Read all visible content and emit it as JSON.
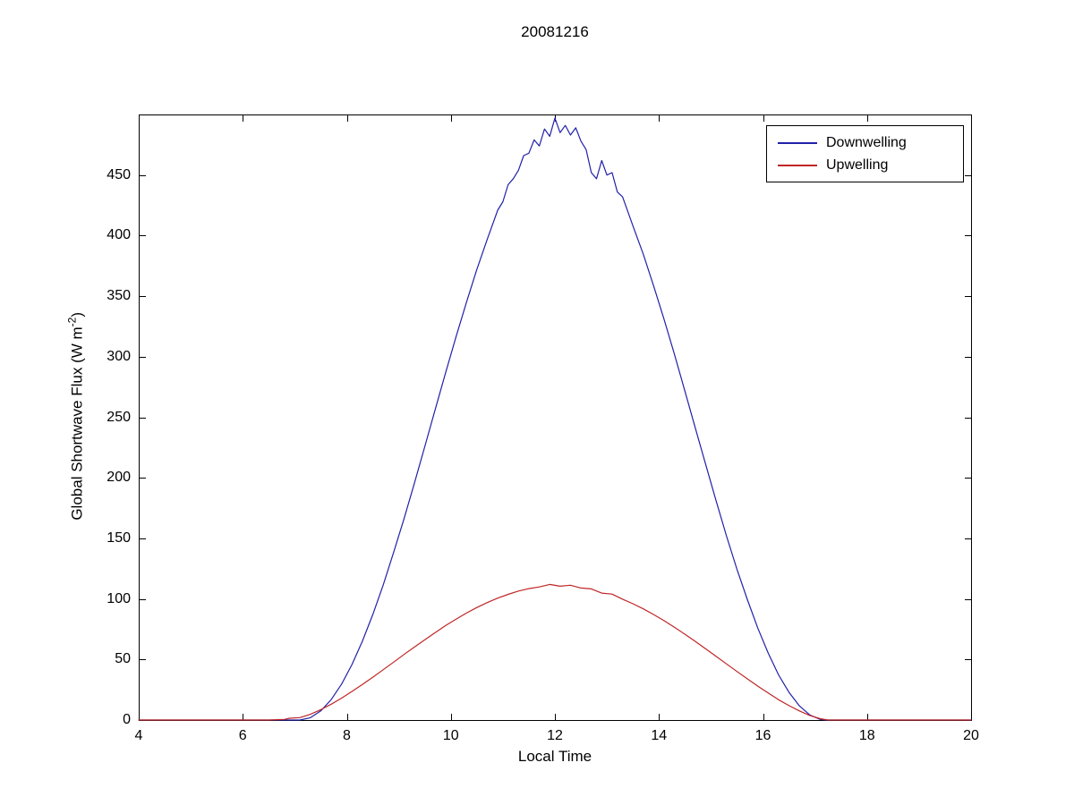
{
  "figure": {
    "title": "20081216"
  },
  "chart_data": {
    "type": "line",
    "title": "20081216",
    "xlabel": "Local Time",
    "ylabel": "Global Shortwave Flux (W m^-2)",
    "ylabel_parts": {
      "prefix": "Global Shortwave Flux (W m",
      "sup": "-2",
      "suffix": ")"
    },
    "xlim": [
      4,
      20
    ],
    "ylim": [
      0,
      500
    ],
    "xticks": [
      4,
      6,
      8,
      10,
      12,
      14,
      16,
      18,
      20
    ],
    "yticks": [
      0,
      50,
      100,
      150,
      200,
      250,
      300,
      350,
      400,
      450
    ],
    "grid": false,
    "background": "#ffffff",
    "axis_color": "#000000",
    "legend_position": "top-right",
    "series": [
      {
        "name": "Downwelling",
        "color": "#2121aa",
        "x": [
          4.0,
          6.5,
          7.0,
          7.1,
          7.3,
          7.5,
          7.7,
          7.9,
          8.1,
          8.3,
          8.5,
          8.7,
          8.9,
          9.1,
          9.3,
          9.5,
          9.7,
          9.9,
          10.1,
          10.3,
          10.5,
          10.7,
          10.9,
          11.0,
          11.1,
          11.2,
          11.3,
          11.4,
          11.5,
          11.6,
          11.7,
          11.8,
          11.9,
          12.0,
          12.1,
          12.2,
          12.3,
          12.4,
          12.5,
          12.6,
          12.7,
          12.8,
          12.9,
          13.0,
          13.1,
          13.2,
          13.3,
          13.5,
          13.7,
          13.9,
          14.1,
          14.3,
          14.5,
          14.7,
          14.9,
          15.1,
          15.3,
          15.5,
          15.7,
          15.9,
          16.1,
          16.3,
          16.5,
          16.7,
          16.9,
          17.1,
          17.2,
          17.5,
          20.0
        ],
        "y": [
          0,
          0,
          0,
          0,
          1.9,
          7.5,
          16.9,
          29.7,
          45.9,
          65.1,
          87.2,
          111.6,
          138.4,
          166.1,
          195.8,
          226.0,
          256.5,
          286.8,
          316.6,
          345.0,
          372.1,
          396.9,
          421,
          428,
          442,
          447,
          454,
          466,
          468,
          479,
          474,
          488,
          482,
          497,
          485,
          491,
          483,
          489,
          478,
          471,
          452,
          447,
          462,
          450,
          452,
          436,
          432,
          408,
          384.6,
          358.3,
          330.6,
          301.6,
          271.5,
          241.1,
          210.7,
          180.8,
          151.8,
          124.5,
          99.3,
          75.9,
          55.3,
          37.3,
          22.8,
          11.7,
          4.2,
          0.5,
          0,
          0,
          0
        ]
      },
      {
        "name": "Upwelling",
        "color": "#bf2626",
        "x": [
          4.0,
          6.5,
          6.8,
          6.9,
          7.1,
          7.3,
          7.5,
          7.7,
          7.9,
          8.1,
          8.3,
          8.5,
          8.7,
          8.9,
          9.1,
          9.3,
          9.5,
          9.7,
          9.9,
          10.1,
          10.3,
          10.5,
          10.7,
          10.9,
          11.1,
          11.3,
          11.5,
          11.7,
          11.9,
          12.1,
          12.3,
          12.5,
          12.7,
          12.9,
          13.1,
          13.3,
          13.5,
          13.7,
          13.9,
          14.1,
          14.3,
          14.5,
          14.7,
          14.9,
          15.1,
          15.3,
          15.5,
          15.7,
          15.9,
          16.1,
          16.3,
          16.5,
          16.7,
          16.9,
          17.1,
          17.25,
          17.5,
          20.0
        ],
        "y": [
          0,
          0,
          0.5,
          1.5,
          2.0,
          4.7,
          8.6,
          13.1,
          18.1,
          23.6,
          29.4,
          35.4,
          41.6,
          47.8,
          54.1,
          60.3,
          66.3,
          72.2,
          78.0,
          83.3,
          88.3,
          92.9,
          97.0,
          100.7,
          103.8,
          106.5,
          108.5,
          109.9,
          112.0,
          110.5,
          111.3,
          109.0,
          108.3,
          104.8,
          104.0,
          99.8,
          96.0,
          91.8,
          87.1,
          82.0,
          76.5,
          70.8,
          64.9,
          58.7,
          52.5,
          46.3,
          40.1,
          34.0,
          28.0,
          22.3,
          16.8,
          11.9,
          7.5,
          3.8,
          1.1,
          0,
          0,
          0
        ]
      }
    ]
  },
  "legend": {
    "entries": [
      {
        "label": "Downwelling"
      },
      {
        "label": "Upwelling"
      }
    ]
  }
}
